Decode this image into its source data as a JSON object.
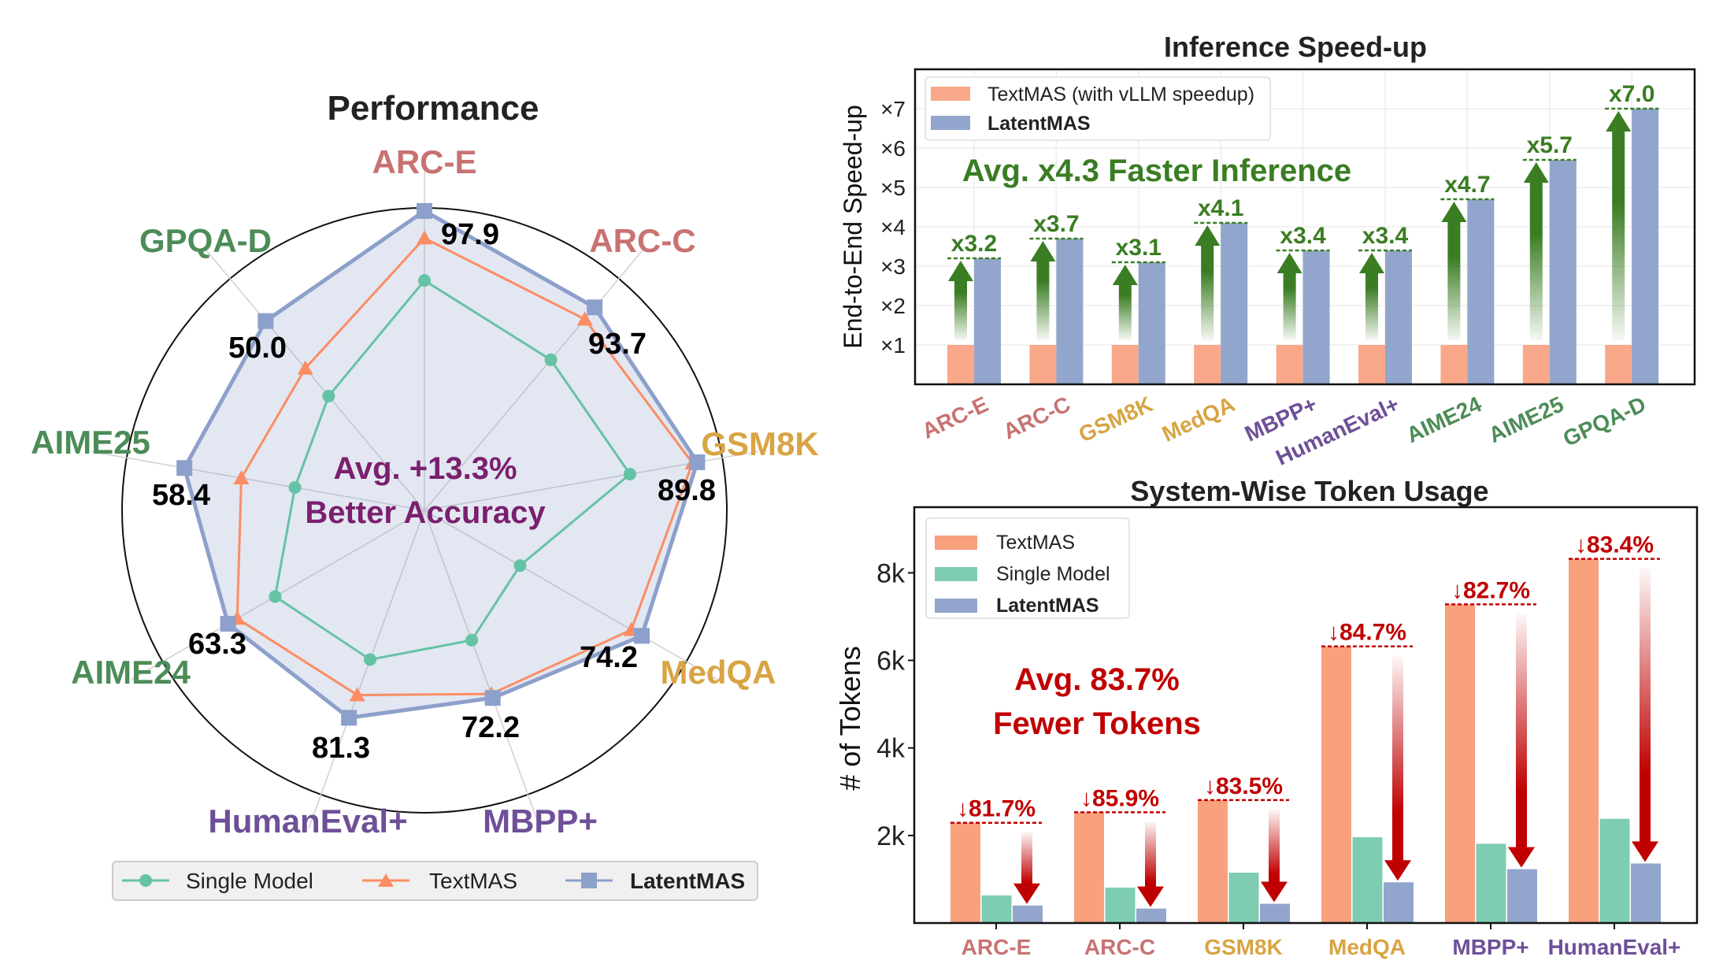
{
  "colors": {
    "single": "#66c2a5",
    "textmas": "#fc8d62",
    "latent": "#8da0cb",
    "green": "#3a7d22",
    "red": "#c00000",
    "purple": "#7b1f6e",
    "cat": {
      "ARC-E": "#c87272",
      "ARC-C": "#c87272",
      "GSM8K": "#d8a444",
      "MedQA": "#d8a444",
      "MBPP+": "#6e4f98",
      "HumanEval+": "#6e4f98",
      "AIME24": "#4c8c58",
      "AIME25": "#4c8c58",
      "GPQA-D": "#4c8c58"
    }
  },
  "chart_data": [
    {
      "type": "radar",
      "title": "Performance",
      "axes": [
        "ARC-E",
        "ARC-C",
        "GSM8K",
        "MedQA",
        "MBPP+",
        "HumanEval+",
        "AIME24",
        "AIME25",
        "GPQA-D"
      ],
      "value_labels": [
        "97.9",
        "93.7",
        "89.8",
        "74.2",
        "72.2",
        "81.3",
        "63.3",
        "58.4",
        "50.0"
      ],
      "normalized_scale": [
        0,
        1
      ],
      "series": [
        {
          "name": "Single Model",
          "values": [
            0.76,
            0.65,
            0.69,
            0.365,
            0.457,
            0.525,
            0.57,
            0.435,
            0.493
          ]
        },
        {
          "name": "TextMAS",
          "values": [
            0.9,
            0.825,
            0.9,
            0.79,
            0.646,
            0.65,
            0.715,
            0.615,
            0.613
          ]
        },
        {
          "name": "LatentMAS",
          "values": [
            0.99,
            0.876,
            0.916,
            0.83,
            0.66,
            0.73,
            0.75,
            0.806,
            0.817
          ]
        }
      ],
      "annotation": [
        "Avg. +13.3%",
        "Better Accuracy"
      ],
      "legend": [
        "Single Model",
        "TextMAS",
        "LatentMAS"
      ],
      "legend_placement": "bottom"
    },
    {
      "type": "bar",
      "title": "Inference Speed-up",
      "ylabel": "End-to-End Speed-up",
      "xlabel": "",
      "categories": [
        "ARC-E",
        "ARC-C",
        "GSM8K",
        "MedQA",
        "MBPP+",
        "HumanEval+",
        "AIME24",
        "AIME25",
        "GPQA-D"
      ],
      "series": [
        {
          "name": "TextMAS (with vLLM speedup)",
          "values": [
            1,
            1,
            1,
            1,
            1,
            1,
            1,
            1,
            1
          ]
        },
        {
          "name": "LatentMAS",
          "values": [
            3.2,
            3.7,
            3.1,
            4.1,
            3.4,
            3.4,
            4.7,
            5.7,
            7.0
          ]
        }
      ],
      "data_labels": [
        "x3.2",
        "x3.7",
        "x3.1",
        "x4.1",
        "x3.4",
        "x3.4",
        "x4.7",
        "x5.7",
        "x7.0"
      ],
      "yticks": [
        "×1",
        "×2",
        "×3",
        "×4",
        "×5",
        "×6",
        "×7"
      ],
      "ylim": [
        0,
        8
      ],
      "grid": true,
      "annotation": "Avg. x4.3 Faster Inference",
      "legend_placement": "top-left"
    },
    {
      "type": "bar",
      "title": "System-Wise Token Usage",
      "ylabel": "# of Tokens",
      "xlabel": "",
      "categories": [
        "ARC-E",
        "ARC-C",
        "GSM8K",
        "MedQA",
        "MBPP+",
        "HumanEval+"
      ],
      "series": [
        {
          "name": "TextMAS",
          "values": [
            2290,
            2530,
            2810,
            6320,
            7280,
            8320
          ]
        },
        {
          "name": "Single Model",
          "values": [
            630,
            810,
            1150,
            1960,
            1810,
            2380
          ]
        },
        {
          "name": "LatentMAS",
          "values": [
            400,
            330,
            440,
            930,
            1230,
            1360
          ]
        }
      ],
      "data_labels": [
        "↓81.7%",
        "↓85.9%",
        "↓83.5%",
        "↓84.7%",
        "↓82.7%",
        "↓83.4%"
      ],
      "yticks": [
        "2k",
        "4k",
        "6k",
        "8k"
      ],
      "ylim": [
        0,
        9500
      ],
      "grid": false,
      "annotation": [
        "Avg. 83.7%",
        "Fewer Tokens"
      ],
      "legend_placement": "top-left"
    }
  ]
}
